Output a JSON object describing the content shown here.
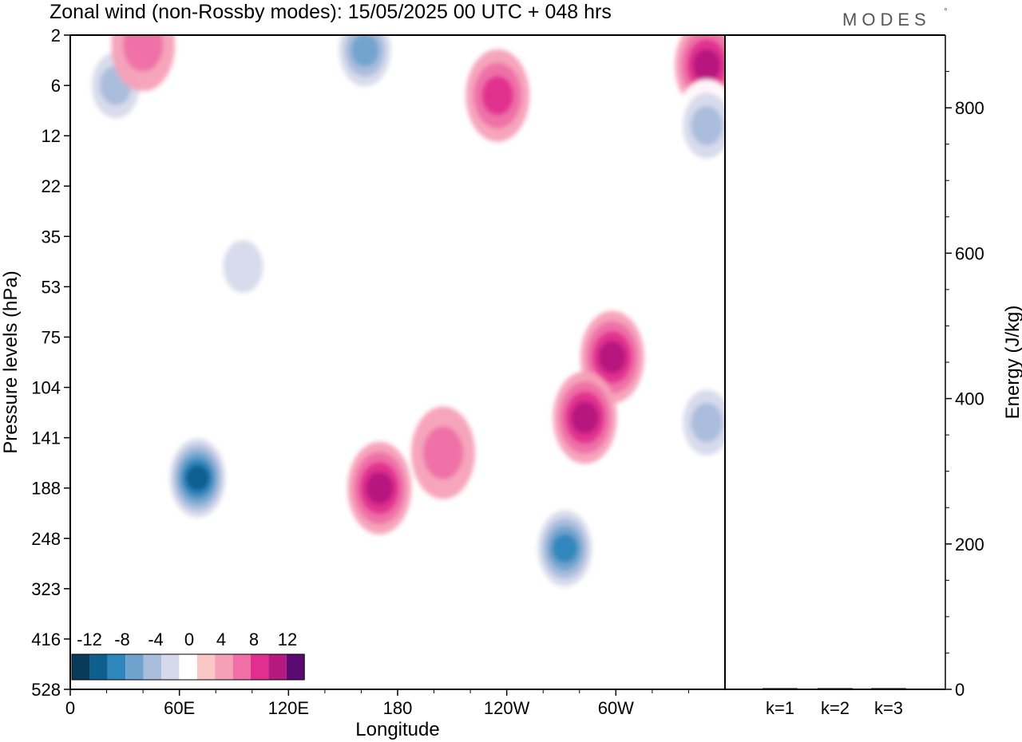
{
  "title": "Zonal wind (non-Rossby modes):  15/05/2025  00 UTC  + 048 hrs",
  "logo": {
    "text": "MODES",
    "mark": "°"
  },
  "chart_data": [
    {
      "type": "heatmap",
      "xlabel": "Longitude",
      "ylabel": "Pressure levels (hPa)",
      "x_ticks": [
        "0",
        "60E",
        "120E",
        "180",
        "120W",
        "60W"
      ],
      "x_range_deg": [
        0,
        360
      ],
      "y_ticks": [
        "2",
        "6",
        "12",
        "22",
        "35",
        "53",
        "75",
        "104",
        "141",
        "188",
        "248",
        "323",
        "416",
        "528"
      ],
      "colorbar": {
        "labels": [
          "-12",
          "-8",
          "-4",
          "0",
          "4",
          "8",
          "12"
        ],
        "levels": [
          -14,
          -12,
          -10,
          -8,
          -6,
          -4,
          -2,
          2,
          4,
          6,
          8,
          10,
          12,
          14
        ],
        "colors": [
          "#0a3a5a",
          "#0f5f8e",
          "#2f86bc",
          "#6fa2cc",
          "#a8bcdc",
          "#d6d9ea",
          "#ffffff",
          "#f9c8c6",
          "#f6a0b8",
          "#ef6fa6",
          "#e02f8e",
          "#b5187e",
          "#5a0a70"
        ]
      },
      "features": [
        {
          "lon": 25,
          "level_index": 1.0,
          "value": -7
        },
        {
          "lon": 40,
          "level_index": 0.2,
          "value": 5
        },
        {
          "lon": 70,
          "level_index": 8.8,
          "value": -13
        },
        {
          "lon": 95,
          "level_index": 4.6,
          "value": -5
        },
        {
          "lon": 162,
          "level_index": 0.3,
          "value": -8
        },
        {
          "lon": 170,
          "level_index": 9.0,
          "value": 8
        },
        {
          "lon": 205,
          "level_index": 8.3,
          "value": 5
        },
        {
          "lon": 235,
          "level_index": 1.2,
          "value": 6
        },
        {
          "lon": 272,
          "level_index": 10.2,
          "value": -11
        },
        {
          "lon": 298,
          "level_index": 6.4,
          "value": 8
        },
        {
          "lon": 283,
          "level_index": 7.6,
          "value": 8
        },
        {
          "lon": 350,
          "level_index": 0.6,
          "value": 9
        },
        {
          "lon": 350,
          "level_index": 7.7,
          "value": -7
        },
        {
          "lon": 350,
          "level_index": 1.8,
          "value": -6
        }
      ]
    },
    {
      "type": "bar",
      "ylabel": "Energy (J/kg)",
      "categories": [
        "k=1",
        "k=2",
        "k=3"
      ],
      "values": [
        1.5,
        1.2,
        0.8
      ],
      "ylim": [
        0,
        900
      ],
      "y_ticks": [
        "0",
        "200",
        "400",
        "600",
        "800"
      ]
    }
  ]
}
